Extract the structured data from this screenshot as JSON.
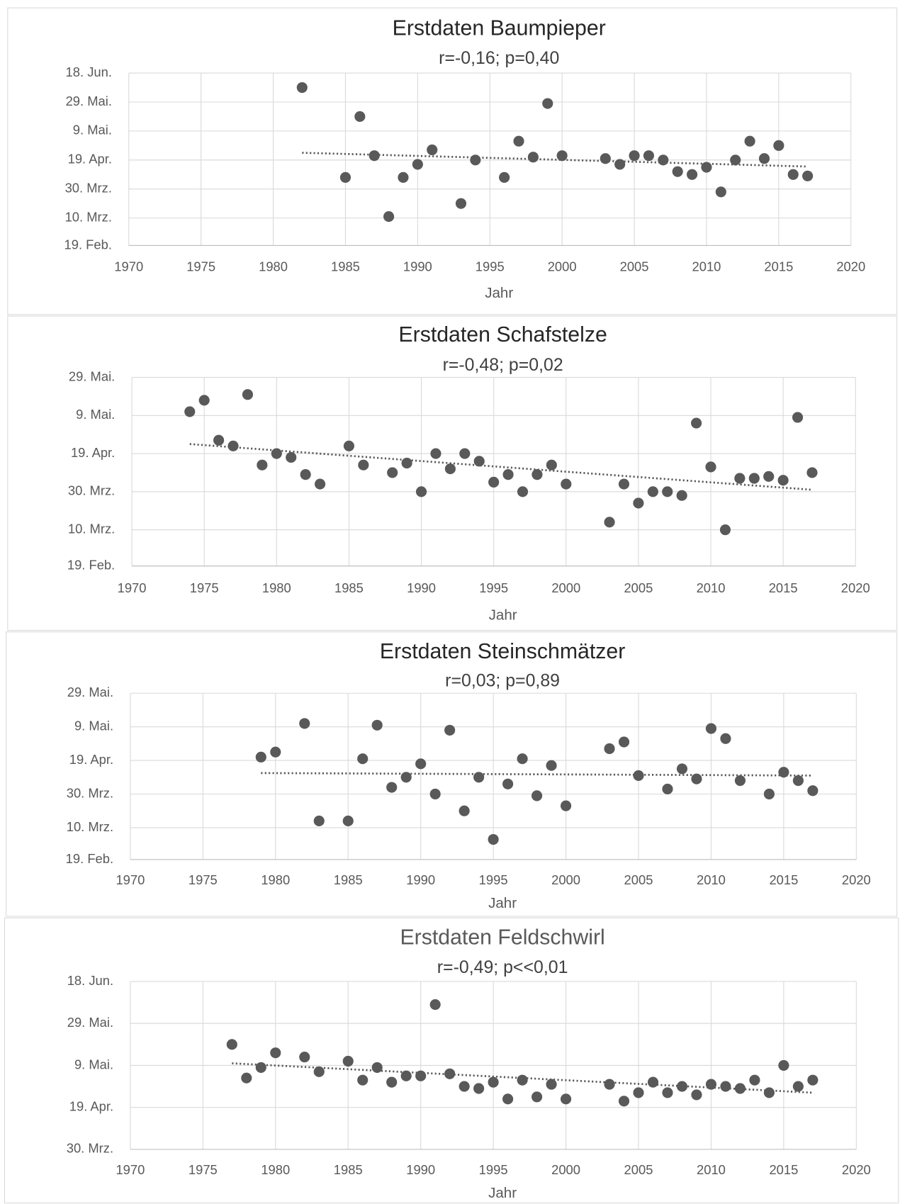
{
  "chart_data": [
    {
      "type": "scatter",
      "title": "Erstdaten Baumpieper",
      "subtitle": "r=-0,16; p=0,40",
      "x_label": "Jahr",
      "color": "#595959",
      "title_color": "#262626",
      "grid": true,
      "x": [
        1982,
        1985,
        1986,
        1987,
        1988,
        1989,
        1990,
        1991,
        1993,
        1994,
        1996,
        1997,
        1998,
        1999,
        2000,
        2003,
        2004,
        2005,
        2006,
        2007,
        2008,
        2009,
        2010,
        2011,
        2012,
        2013,
        2014,
        2015,
        2016,
        2017
      ],
      "values": [
        159,
        97,
        139,
        112,
        70,
        97,
        106,
        116,
        79,
        109,
        97,
        122,
        111,
        148,
        112,
        110,
        106,
        112,
        112,
        109,
        101,
        99,
        104,
        87,
        109,
        122,
        110,
        119,
        99,
        98
      ],
      "trendline": {
        "x": [
          1982,
          2017
        ],
        "y": [
          114,
          104.5
        ]
      },
      "xlim": [
        1970,
        2020
      ],
      "xticks": [
        1970,
        1975,
        1980,
        1985,
        1990,
        1995,
        2000,
        2005,
        2010,
        2015,
        2020
      ],
      "ylim": [
        50,
        169
      ],
      "yticks": [
        {
          "value": 50,
          "label": "19. Feb."
        },
        {
          "value": 69,
          "label": "10. Mrz."
        },
        {
          "value": 89,
          "label": "30. Mrz."
        },
        {
          "value": 109,
          "label": "19. Apr."
        },
        {
          "value": 129,
          "label": "9. Mai."
        },
        {
          "value": 149,
          "label": "29. Mai."
        },
        {
          "value": 169,
          "label": "18. Jun."
        }
      ]
    },
    {
      "type": "scatter",
      "title": "Erstdaten Schafstelze",
      "subtitle": "r=-0,48; p=0,02",
      "x_label": "Jahr",
      "color": "#595959",
      "title_color": "#262626",
      "grid": true,
      "x": [
        1974,
        1975,
        1976,
        1977,
        1978,
        1979,
        1980,
        1981,
        1982,
        1983,
        1985,
        1986,
        1988,
        1989,
        1990,
        1991,
        1992,
        1993,
        1994,
        1995,
        1996,
        1997,
        1998,
        1999,
        2000,
        2003,
        2004,
        2005,
        2006,
        2007,
        2008,
        2009,
        2010,
        2011,
        2012,
        2013,
        2014,
        2015,
        2016,
        2017
      ],
      "values": [
        131,
        137,
        116,
        113,
        140,
        103,
        109,
        107,
        98,
        93,
        113,
        103,
        99,
        104,
        89,
        109,
        101,
        109,
        105,
        94,
        98,
        89,
        98,
        103,
        93,
        73,
        93,
        83,
        89,
        89,
        87,
        125,
        102,
        69,
        96,
        96,
        97,
        95,
        128,
        99
      ],
      "trendline": {
        "x": [
          1974,
          2017
        ],
        "y": [
          114,
          90
        ]
      },
      "xlim": [
        1970,
        2020
      ],
      "xticks": [
        1970,
        1975,
        1980,
        1985,
        1990,
        1995,
        2000,
        2005,
        2010,
        2015,
        2020
      ],
      "ylim": [
        50,
        149
      ],
      "yticks": [
        {
          "value": 50,
          "label": "19. Feb."
        },
        {
          "value": 69,
          "label": "10. Mrz."
        },
        {
          "value": 89,
          "label": "30. Mrz."
        },
        {
          "value": 109,
          "label": "19. Apr."
        },
        {
          "value": 129,
          "label": "9. Mai."
        },
        {
          "value": 149,
          "label": "29. Mai."
        }
      ]
    },
    {
      "type": "scatter",
      "title": "Erstdaten Steinschmätzer",
      "subtitle": "r=0,03; p=0,89",
      "x_label": "Jahr",
      "color": "#595959",
      "title_color": "#262626",
      "grid": true,
      "x": [
        1979,
        1980,
        1982,
        1983,
        1985,
        1986,
        1987,
        1988,
        1989,
        1990,
        1991,
        1992,
        1993,
        1994,
        1995,
        1996,
        1997,
        1998,
        1999,
        2000,
        2003,
        2004,
        2005,
        2007,
        2008,
        2009,
        2010,
        2011,
        2012,
        2014,
        2015,
        2016,
        2017
      ],
      "values": [
        111,
        114,
        131,
        73,
        73,
        110,
        130,
        93,
        99,
        107,
        89,
        127,
        79,
        99,
        62,
        95,
        110,
        88,
        106,
        82,
        116,
        120,
        100,
        92,
        104,
        98,
        128,
        122,
        97,
        89,
        102,
        97,
        91
      ],
      "trendline": {
        "x": [
          1979,
          2017
        ],
        "y": [
          101.5,
          100
        ]
      },
      "xlim": [
        1970,
        2020
      ],
      "xticks": [
        1970,
        1975,
        1980,
        1985,
        1990,
        1995,
        2000,
        2005,
        2010,
        2015,
        2020
      ],
      "ylim": [
        50,
        149
      ],
      "yticks": [
        {
          "value": 50,
          "label": "19. Feb."
        },
        {
          "value": 69,
          "label": "10. Mrz."
        },
        {
          "value": 89,
          "label": "30. Mrz."
        },
        {
          "value": 109,
          "label": "19. Apr."
        },
        {
          "value": 129,
          "label": "9. Mai."
        },
        {
          "value": 149,
          "label": "29. Mai."
        }
      ]
    },
    {
      "type": "scatter",
      "title": "Erstdaten Feldschwirl",
      "subtitle": "r=-0,49; p<<0,01",
      "x_label": "Jahr",
      "color": "#595959",
      "title_color": "#595959",
      "grid": true,
      "x": [
        1977,
        1978,
        1979,
        1980,
        1982,
        1983,
        1985,
        1986,
        1987,
        1988,
        1989,
        1990,
        1991,
        1992,
        1993,
        1994,
        1995,
        1996,
        1997,
        1998,
        1999,
        2000,
        2003,
        2004,
        2005,
        2006,
        2007,
        2008,
        2009,
        2010,
        2011,
        2012,
        2013,
        2014,
        2015,
        2016,
        2017
      ],
      "values": [
        139,
        123,
        128,
        135,
        133,
        126,
        131,
        122,
        128,
        121,
        124,
        124,
        158,
        125,
        119,
        118,
        121,
        113,
        122,
        114,
        120,
        113,
        120,
        112,
        116,
        121,
        116,
        119,
        115,
        120,
        119,
        118,
        122,
        116,
        129,
        119,
        122
      ],
      "trendline": {
        "x": [
          1977,
          2017
        ],
        "y": [
          130,
          116
        ]
      },
      "xlim": [
        1970,
        2020
      ],
      "xticks": [
        1970,
        1975,
        1980,
        1985,
        1990,
        1995,
        2000,
        2005,
        2010,
        2015,
        2020
      ],
      "ylim": [
        89,
        169
      ],
      "yticks": [
        {
          "value": 89,
          "label": "30. Mrz."
        },
        {
          "value": 109,
          "label": "19. Apr."
        },
        {
          "value": 129,
          "label": "9. Mai."
        },
        {
          "value": 149,
          "label": "29. Mai."
        },
        {
          "value": 169,
          "label": "18. Jun."
        }
      ]
    }
  ]
}
